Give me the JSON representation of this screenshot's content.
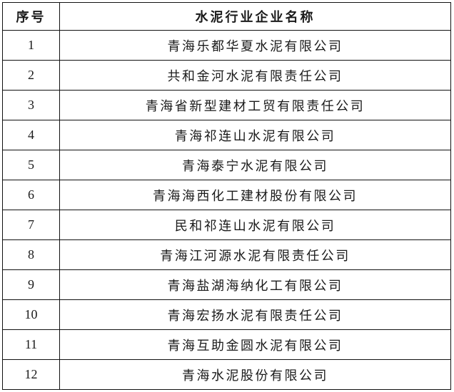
{
  "table": {
    "title_semantic": "cement-industry-company-list",
    "headers": [
      "序号",
      "水泥行业企业名称"
    ],
    "rows": [
      {
        "no": "1",
        "name": "青海乐都华夏水泥有限公司"
      },
      {
        "no": "2",
        "name": "共和金河水泥有限责任公司"
      },
      {
        "no": "3",
        "name": "青海省新型建材工贸有限责任公司"
      },
      {
        "no": "4",
        "name": "青海祁连山水泥有限公司"
      },
      {
        "no": "5",
        "name": "青海泰宁水泥有限公司"
      },
      {
        "no": "6",
        "name": "青海海西化工建材股份有限公司"
      },
      {
        "no": "7",
        "name": "民和祁连山水泥有限公司"
      },
      {
        "no": "8",
        "name": "青海江河源水泥有限责任公司"
      },
      {
        "no": "9",
        "name": "青海盐湖海纳化工有限公司"
      },
      {
        "no": "10",
        "name": "青海宏扬水泥有限责任公司"
      },
      {
        "no": "11",
        "name": "青海互助金圆水泥有限公司"
      },
      {
        "no": "12",
        "name": "青海水泥股份有限公司"
      }
    ],
    "colors": {
      "border": "#111111",
      "text": "#1a1a1a",
      "background": "#ffffff"
    }
  }
}
